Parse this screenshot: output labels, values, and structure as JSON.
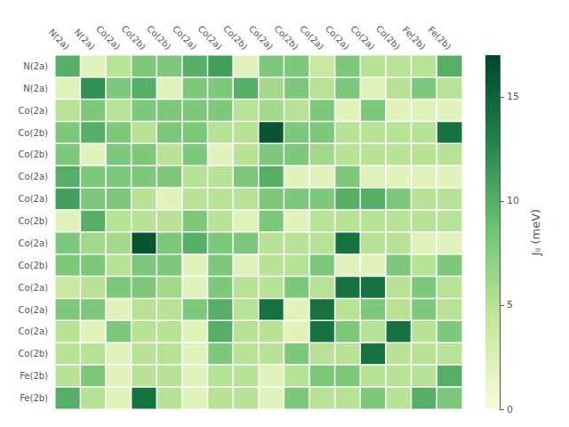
{
  "chart_data": {
    "type": "heatmap",
    "categories": [
      "N(2a)",
      "N(2a)",
      "Co(2a)",
      "Co(2b)",
      "Co(2b)",
      "Co(2a)",
      "Co(2a)",
      "Co(2b)",
      "Co(2a)",
      "Co(2b)",
      "Co(2a)",
      "Co(2a)",
      "Co(2a)",
      "Co(2b)",
      "Fe(2b)",
      "Fe(2b)"
    ],
    "matrix": [
      [
        10,
        2,
        5,
        8,
        8,
        10,
        11,
        2,
        8,
        8,
        4,
        8,
        5,
        5,
        5,
        10
      ],
      [
        2,
        12,
        8,
        10,
        2,
        8,
        8,
        10,
        6,
        8,
        5,
        8,
        2,
        5,
        8,
        5
      ],
      [
        5,
        8,
        5,
        8,
        8,
        8,
        8,
        5,
        6,
        5,
        8,
        2,
        8,
        2,
        2,
        2
      ],
      [
        8,
        10,
        8,
        5,
        8,
        8,
        5,
        5,
        16,
        8,
        8,
        5,
        5,
        5,
        5,
        14
      ],
      [
        8,
        2,
        8,
        8,
        5,
        8,
        2,
        5,
        8,
        8,
        6,
        5,
        5,
        5,
        5,
        5
      ],
      [
        10,
        8,
        8,
        8,
        8,
        5,
        5,
        8,
        10,
        2,
        2,
        8,
        2,
        2,
        2,
        2
      ],
      [
        11,
        8,
        8,
        5,
        2,
        5,
        5,
        5,
        8,
        8,
        8,
        10,
        10,
        8,
        5,
        5
      ],
      [
        2,
        10,
        5,
        5,
        5,
        8,
        5,
        2,
        8,
        2,
        5,
        5,
        5,
        5,
        5,
        5
      ],
      [
        8,
        6,
        6,
        16,
        8,
        10,
        8,
        8,
        5,
        5,
        5,
        14,
        5,
        5,
        2,
        2
      ],
      [
        8,
        8,
        5,
        8,
        8,
        2,
        8,
        2,
        5,
        5,
        8,
        2,
        2,
        8,
        5,
        8
      ],
      [
        4,
        5,
        8,
        8,
        6,
        2,
        8,
        5,
        5,
        8,
        5,
        14,
        14,
        5,
        8,
        5
      ],
      [
        8,
        8,
        2,
        5,
        5,
        8,
        10,
        5,
        14,
        2,
        14,
        5,
        8,
        5,
        8,
        5
      ],
      [
        5,
        2,
        8,
        5,
        5,
        2,
        10,
        5,
        5,
        2,
        14,
        8,
        5,
        14,
        5,
        8
      ],
      [
        5,
        5,
        2,
        5,
        5,
        2,
        8,
        5,
        5,
        8,
        5,
        5,
        14,
        5,
        5,
        5
      ],
      [
        5,
        8,
        2,
        5,
        5,
        2,
        5,
        5,
        2,
        5,
        8,
        8,
        5,
        5,
        5,
        10
      ],
      [
        10,
        5,
        2,
        14,
        5,
        2,
        5,
        5,
        2,
        8,
        5,
        5,
        8,
        5,
        10,
        8
      ]
    ],
    "colorbar_label": "Jᵢⱼ (meV)",
    "colorbar_range": [
      0,
      17
    ],
    "colorbar_ticks": [
      0,
      5,
      10,
      15
    ],
    "colors": [
      "#f7fcdb",
      "#c7e89c",
      "#73c475",
      "#21854c",
      "#00452b"
    ]
  }
}
